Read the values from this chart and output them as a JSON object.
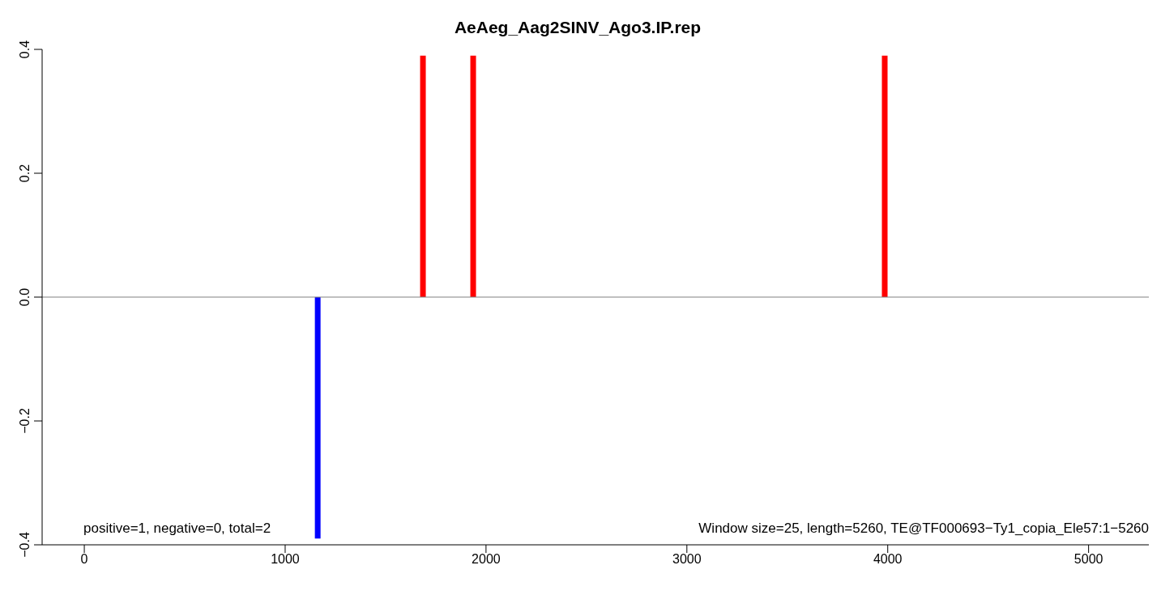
{
  "chart_data": {
    "type": "bar",
    "title": "AeAeg_Aag2SINV_Ago3.IP.rep",
    "x": [
      1164,
      1688,
      1938,
      3987
    ],
    "values": [
      -0.39,
      0.39,
      0.39,
      0.39
    ],
    "colors": [
      "#0000ff",
      "#ff0000",
      "#ff0000",
      "#ff0000"
    ],
    "xlim": [
      -210,
      5300
    ],
    "xticks": [
      0,
      1000,
      2000,
      3000,
      4000,
      5000
    ],
    "ylim": [
      -0.4,
      0.4
    ],
    "yticks": [
      {
        "value": -0.4,
        "label": "−0.4"
      },
      {
        "value": -0.2,
        "label": "−0.2"
      },
      {
        "value": 0,
        "label": "0.0"
      },
      {
        "value": 0.2,
        "label": "0.2"
      },
      {
        "value": 0.4,
        "label": "0.4"
      }
    ],
    "ref_lines": [
      {
        "axis": "y",
        "value": 0,
        "color": "#808080"
      }
    ],
    "annotations": [
      "positive=1, negative=0, total=2",
      "Window size=25, length=5260, TE@TF000693−Ty1_copia_Ele57:1−5260"
    ],
    "grid": false,
    "legend": false
  }
}
